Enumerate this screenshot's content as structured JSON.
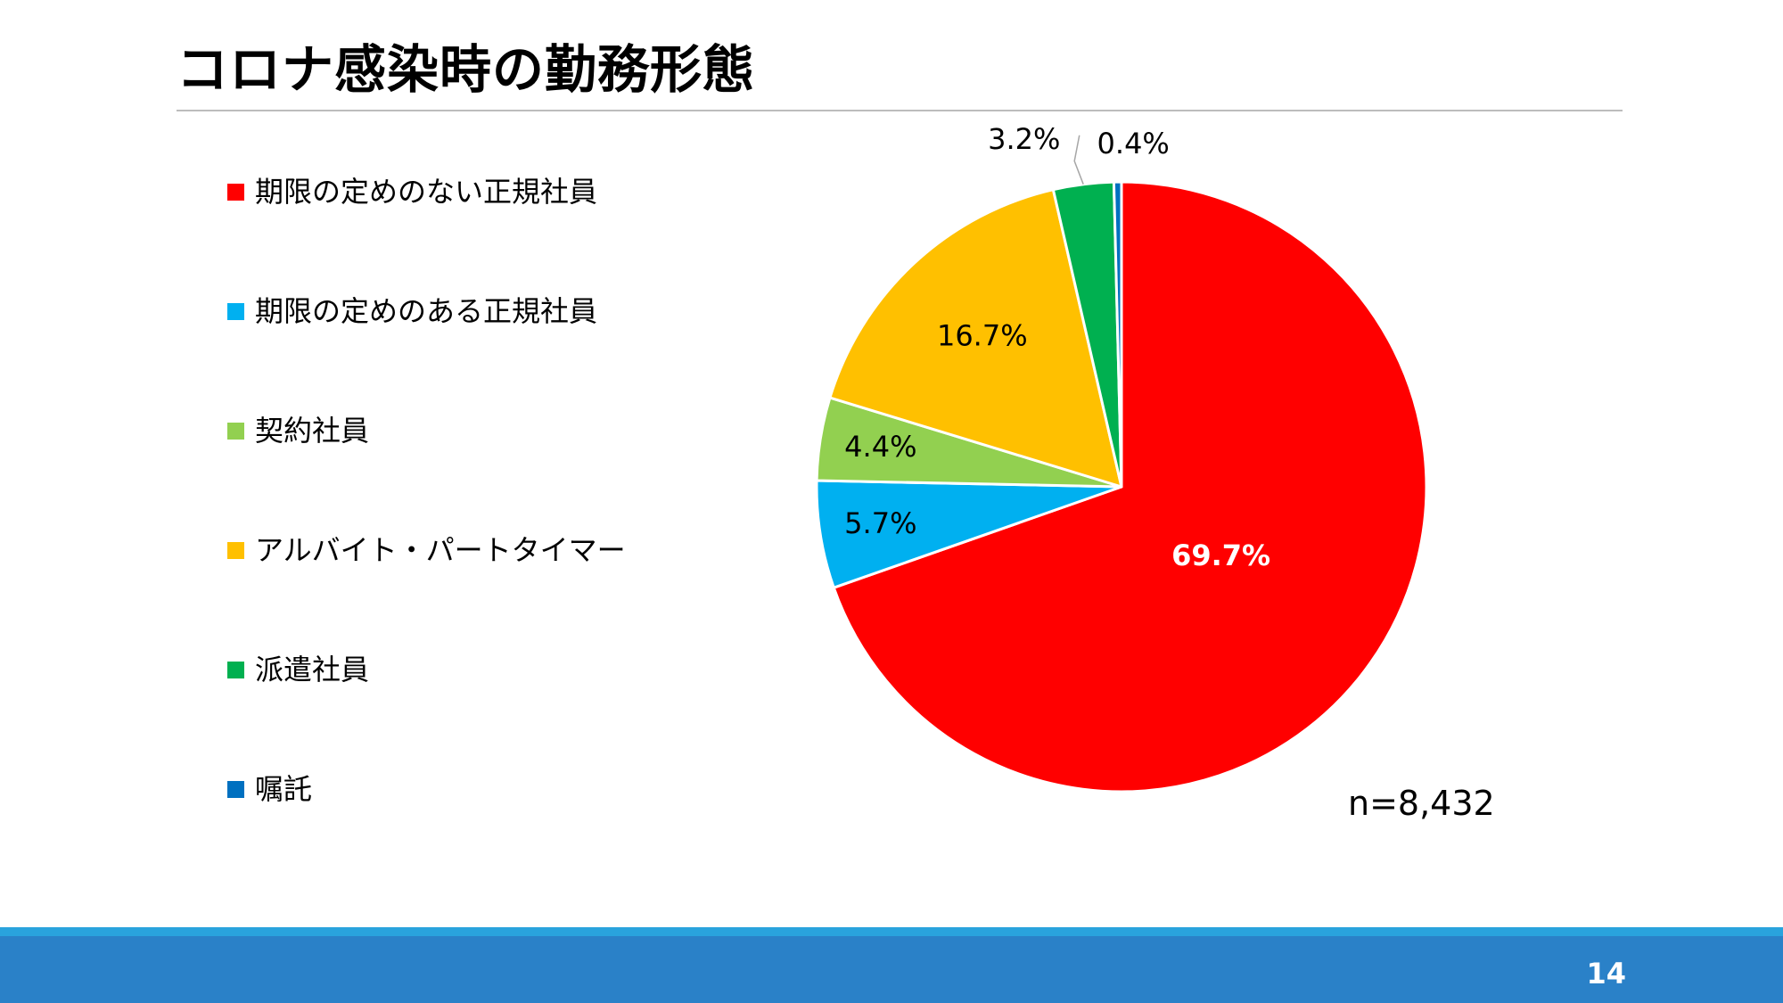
{
  "slide": {
    "title": "コロナ感染時の勤務形態",
    "sample_size": "n=8,432",
    "page_number": "14"
  },
  "chart_data": {
    "type": "pie",
    "title": "",
    "start_angle_deg": 0,
    "direction": "clockwise",
    "slices": [
      {
        "label": "期限の定めのない正規社員",
        "value": 69.7,
        "display": "69.7%",
        "color": "#ff0000",
        "label_color": "#ffffff",
        "label_bold": true
      },
      {
        "label": "期限の定めのある正規社員",
        "value": 5.7,
        "display": "5.7%",
        "color": "#00b0f0",
        "label_color": "#000000",
        "label_bold": false
      },
      {
        "label": "契約社員",
        "value": 4.4,
        "display": "4.4%",
        "color": "#92d050",
        "label_color": "#000000",
        "label_bold": false
      },
      {
        "label": "アルバイト・パートタイマー",
        "value": 16.7,
        "display": "16.7%",
        "color": "#ffc000",
        "label_color": "#000000",
        "label_bold": false
      },
      {
        "label": "派遣社員",
        "value": 3.2,
        "display": "3.2%",
        "color": "#00b050",
        "label_color": "#000000",
        "label_bold": false
      },
      {
        "label": "嘱託",
        "value": 0.4,
        "display": "0.4%",
        "color": "#0070c0",
        "label_color": "#000000",
        "label_bold": false
      }
    ],
    "legend_position": "left"
  }
}
